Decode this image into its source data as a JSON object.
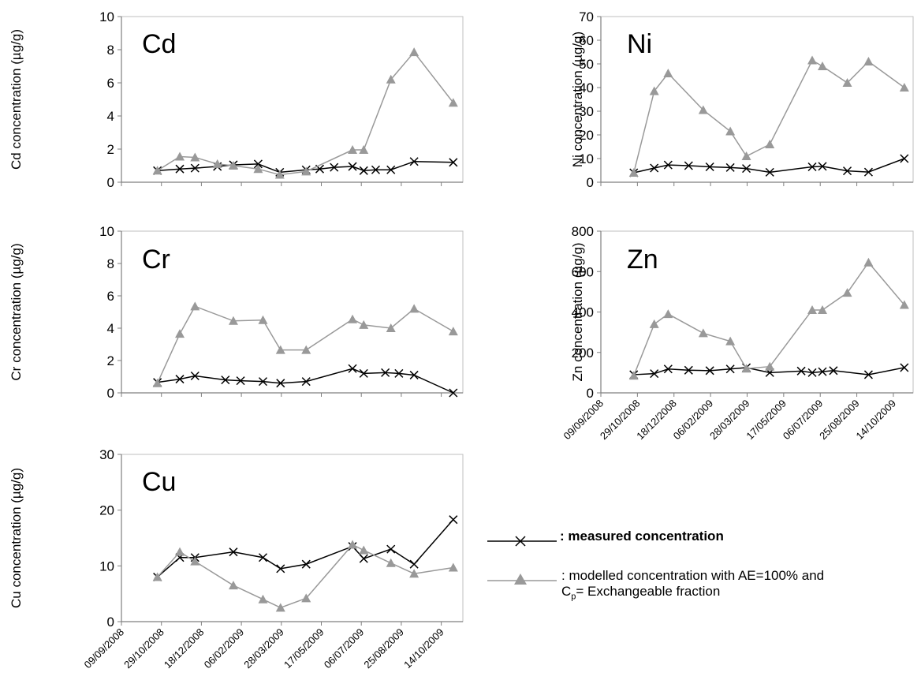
{
  "colors": {
    "measured": "#000000",
    "modelled": "#999999",
    "axis": "#7f7f7f"
  },
  "date_ticks": [
    "09/09/2008",
    "29/10/2008",
    "18/12/2008",
    "06/02/2009",
    "28/03/2009",
    "17/05/2009",
    "06/07/2009",
    "25/08/2009",
    "14/10/2009"
  ],
  "chart_data": [
    {
      "type": "line",
      "element": "Cd",
      "title": "Cd",
      "ylabel": "Cd concentration  (µg/g)",
      "ylim": [
        0,
        10
      ],
      "yticks": [
        "0",
        "2",
        "4",
        "6",
        "8",
        "10"
      ],
      "xlim": [
        "2008-09-09",
        "2009-11-10"
      ],
      "series": [
        {
          "key": "measured",
          "x": [
            "2008-10-24",
            "2008-11-21",
            "2008-12-10",
            "2009-01-07",
            "2009-01-27",
            "2009-02-27",
            "2009-03-26",
            "2009-04-28",
            "2009-05-15",
            "2009-06-02",
            "2009-06-25",
            "2009-07-09",
            "2009-07-24",
            "2009-08-12",
            "2009-09-10",
            "2009-10-29"
          ],
          "values": [
            0.7,
            0.8,
            0.85,
            0.95,
            1.05,
            1.1,
            0.6,
            0.75,
            0.8,
            0.9,
            0.95,
            0.7,
            0.75,
            0.75,
            1.25,
            1.2
          ]
        },
        {
          "key": "modelled",
          "x": [
            "2008-10-24",
            "2008-11-21",
            "2008-12-10",
            "2009-01-07",
            "2009-01-27",
            "2009-02-27",
            "2009-03-26",
            "2009-04-28",
            "2009-06-25",
            "2009-07-09",
            "2009-08-12",
            "2009-09-10",
            "2009-10-29"
          ],
          "values": [
            0.7,
            1.55,
            1.5,
            1.1,
            1.0,
            0.8,
            0.45,
            0.65,
            1.95,
            1.95,
            6.2,
            7.85,
            4.8
          ]
        }
      ]
    },
    {
      "type": "line",
      "element": "Ni",
      "title": "Ni",
      "ylabel": "Ni concentration  (µg/g)",
      "ylim": [
        0,
        70
      ],
      "yticks": [
        "0",
        "10",
        "20",
        "30",
        "40",
        "50",
        "60",
        "70"
      ],
      "xlim": [
        "2008-09-09",
        "2009-11-10"
      ],
      "series": [
        {
          "key": "measured",
          "x": [
            "2008-10-24",
            "2008-11-21",
            "2008-12-10",
            "2009-01-07",
            "2009-02-05",
            "2009-03-05",
            "2009-03-27",
            "2009-04-28",
            "2009-06-25",
            "2009-07-09",
            "2009-08-12",
            "2009-09-10",
            "2009-10-29"
          ],
          "values": [
            4,
            6,
            7.3,
            7,
            6.5,
            6.2,
            5.8,
            4.2,
            6.5,
            6.7,
            4.8,
            4.3,
            10
          ]
        },
        {
          "key": "modelled",
          "x": [
            "2008-10-24",
            "2008-11-21",
            "2008-12-10",
            "2009-01-27",
            "2009-03-05",
            "2009-03-27",
            "2009-04-28",
            "2009-06-25",
            "2009-07-09",
            "2009-08-12",
            "2009-09-10",
            "2009-10-29"
          ],
          "values": [
            4,
            38.5,
            46,
            30.5,
            21.5,
            11,
            16,
            51.5,
            49,
            42,
            51,
            40
          ]
        }
      ]
    },
    {
      "type": "line",
      "element": "Cr",
      "title": "Cr",
      "ylabel": "Cr concentration  (µg/g)",
      "ylim": [
        0,
        10
      ],
      "yticks": [
        "0",
        "2",
        "4",
        "6",
        "8",
        "10"
      ],
      "xlim": [
        "2008-09-09",
        "2009-11-10"
      ],
      "series": [
        {
          "key": "measured",
          "x": [
            "2008-10-24",
            "2008-11-21",
            "2008-12-10",
            "2009-01-17",
            "2009-02-05",
            "2009-03-05",
            "2009-03-27",
            "2009-04-28",
            "2009-06-25",
            "2009-07-09",
            "2009-08-05",
            "2009-08-22",
            "2009-09-10",
            "2009-10-29"
          ],
          "values": [
            0.65,
            0.85,
            1.05,
            0.8,
            0.75,
            0.7,
            0.6,
            0.7,
            1.5,
            1.2,
            1.25,
            1.2,
            1.1,
            0.0
          ]
        },
        {
          "key": "modelled",
          "x": [
            "2008-10-24",
            "2008-11-21",
            "2008-12-10",
            "2009-01-27",
            "2009-03-05",
            "2009-03-27",
            "2009-04-28",
            "2009-06-25",
            "2009-07-09",
            "2009-08-12",
            "2009-09-10",
            "2009-10-29"
          ],
          "values": [
            0.6,
            3.65,
            5.35,
            4.45,
            4.5,
            2.65,
            2.65,
            4.55,
            4.2,
            4.0,
            5.2,
            3.8
          ]
        }
      ]
    },
    {
      "type": "line",
      "element": "Zn",
      "title": "Zn",
      "ylabel": "Zn concentration  (µg/g)",
      "ylim": [
        0,
        800
      ],
      "yticks": [
        "0",
        "200",
        "400",
        "600",
        "800"
      ],
      "xlim": [
        "2008-09-09",
        "2009-11-10"
      ],
      "xticks_visible": true,
      "series": [
        {
          "key": "measured",
          "x": [
            "2008-10-24",
            "2008-11-21",
            "2008-12-10",
            "2009-01-07",
            "2009-02-05",
            "2009-03-05",
            "2009-03-27",
            "2009-04-28",
            "2009-06-10",
            "2009-06-25",
            "2009-07-09",
            "2009-07-24",
            "2009-09-10",
            "2009-10-29"
          ],
          "values": [
            90,
            95,
            118,
            112,
            110,
            118,
            125,
            100,
            108,
            100,
            105,
            110,
            90,
            125
          ]
        },
        {
          "key": "modelled",
          "x": [
            "2008-10-24",
            "2008-11-21",
            "2008-12-10",
            "2009-01-27",
            "2009-03-05",
            "2009-03-27",
            "2009-04-28",
            "2009-06-25",
            "2009-07-09",
            "2009-08-12",
            "2009-09-10",
            "2009-10-29"
          ],
          "values": [
            85,
            340,
            390,
            295,
            255,
            120,
            130,
            410,
            410,
            495,
            645,
            435
          ]
        }
      ]
    },
    {
      "type": "line",
      "element": "Cu",
      "title": "Cu",
      "ylabel": "Cu concentration  (µg/g)",
      "ylim": [
        0,
        30
      ],
      "yticks": [
        "0",
        "10",
        "20",
        "30"
      ],
      "xlim": [
        "2008-09-09",
        "2009-11-10"
      ],
      "xticks_visible": true,
      "series": [
        {
          "key": "measured",
          "x": [
            "2008-10-24",
            "2008-11-21",
            "2008-12-10",
            "2009-01-27",
            "2009-03-05",
            "2009-03-27",
            "2009-04-28",
            "2009-06-25",
            "2009-07-09",
            "2009-08-12",
            "2009-09-10",
            "2009-10-29"
          ],
          "values": [
            8,
            11.5,
            11.5,
            12.5,
            11.5,
            9.5,
            10.3,
            13.5,
            11.3,
            13,
            10.3,
            18.3
          ]
        },
        {
          "key": "modelled",
          "x": [
            "2008-10-24",
            "2008-11-21",
            "2008-12-10",
            "2009-01-27",
            "2009-03-05",
            "2009-03-27",
            "2009-04-28",
            "2009-06-25",
            "2009-07-09",
            "2009-08-12",
            "2009-09-10",
            "2009-10-29"
          ],
          "values": [
            8,
            12.5,
            10.8,
            6.5,
            4,
            2.5,
            4.2,
            13.8,
            12.8,
            10.5,
            8.6,
            9.7
          ]
        }
      ]
    }
  ],
  "legend": {
    "measured_label": ": measured concentration",
    "modelled_label_line1": ": modelled concentration with AE=100% and",
    "modelled_label_line2_a": "C",
    "modelled_label_line2_sub": "p",
    "modelled_label_line2_b": "= Exchangeable fraction"
  }
}
